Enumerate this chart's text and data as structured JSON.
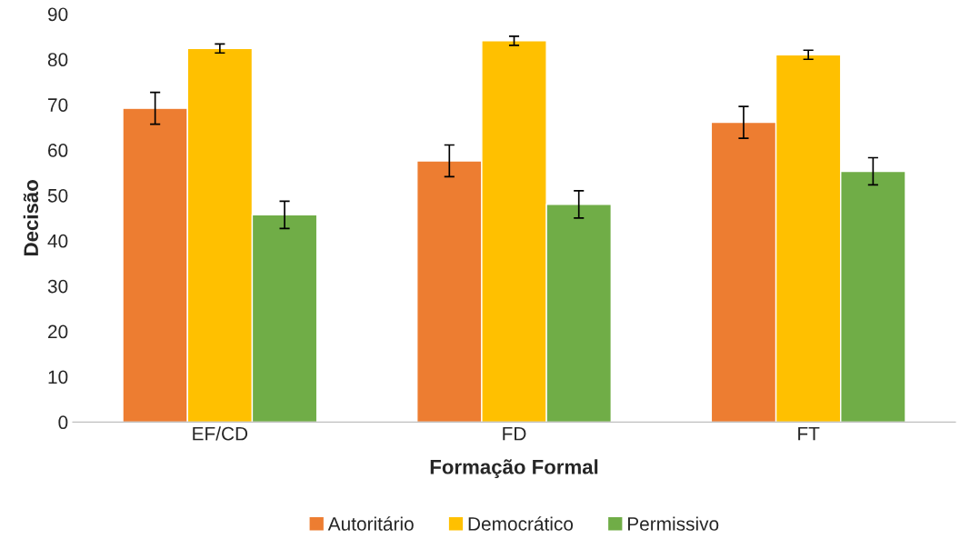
{
  "chart_data": {
    "type": "bar",
    "xlabel": "Formação Formal",
    "ylabel": "Decisão",
    "categories": [
      "EF/CD",
      "FD",
      "FT"
    ],
    "series": [
      {
        "name": "Autoritário",
        "color": "#ed7d31",
        "values": [
          69.2,
          57.6,
          66.1
        ],
        "errors": [
          3.5,
          3.5,
          3.5
        ]
      },
      {
        "name": "Democrático",
        "color": "#ffc000",
        "values": [
          82.4,
          84.1,
          81.0
        ],
        "errors": [
          1,
          1,
          1
        ]
      },
      {
        "name": "Permissivo",
        "color": "#70ad47",
        "values": [
          45.7,
          48.0,
          55.3
        ],
        "errors": [
          3,
          3,
          3
        ]
      }
    ],
    "ylim": [
      0,
      90
    ],
    "yticks": [
      0,
      10,
      20,
      30,
      40,
      50,
      60,
      70,
      80,
      90
    ],
    "grid": false,
    "legend": "bottom"
  }
}
